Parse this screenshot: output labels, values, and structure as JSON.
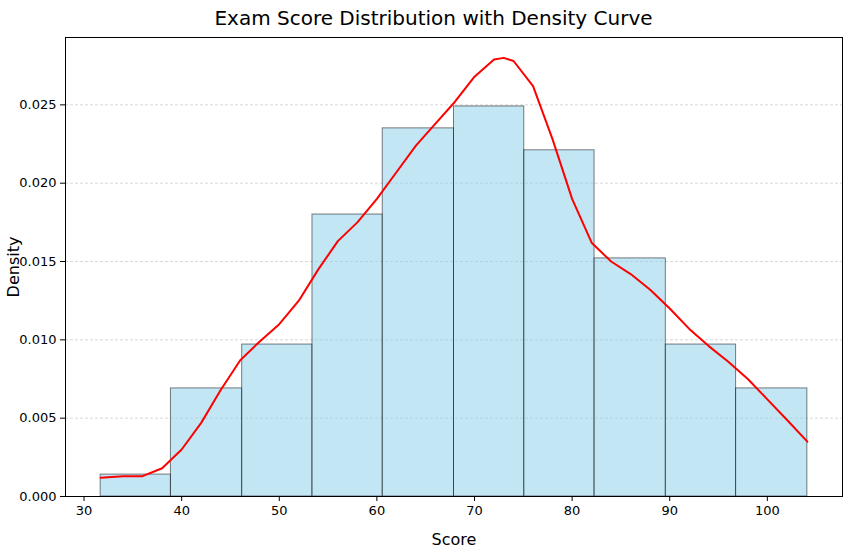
{
  "chart_data": {
    "type": "histogram",
    "title": "Exam Score Distribution with Density Curve",
    "x_label": "Score",
    "y_label": "Density",
    "bins": [
      31.7,
      38.9,
      46.2,
      53.4,
      60.6,
      67.9,
      75.1,
      82.3,
      89.6,
      96.8,
      104.1
    ],
    "values": [
      0.0014,
      0.0069,
      0.0097,
      0.018,
      0.0235,
      0.0249,
      0.0221,
      0.0152,
      0.0097,
      0.0069
    ],
    "color": "#87ceeb",
    "series": [
      {
        "type": "line",
        "color": "#ff0000",
        "x": [
          31.7,
          34,
          36,
          38,
          40,
          42,
          44,
          46,
          48,
          50,
          52,
          54,
          56,
          58,
          60,
          62,
          64,
          66,
          68,
          70,
          72,
          73,
          74,
          76,
          78,
          80,
          82,
          84,
          86,
          88,
          90,
          92,
          94,
          96,
          98,
          100,
          102,
          104.1
        ],
        "values": [
          0.0012,
          0.0013,
          0.0013,
          0.0018,
          0.003,
          0.0047,
          0.0068,
          0.0087,
          0.0099,
          0.011,
          0.0125,
          0.0145,
          0.0163,
          0.0175,
          0.019,
          0.0207,
          0.0224,
          0.0238,
          0.0252,
          0.0268,
          0.0279,
          0.028,
          0.0278,
          0.0262,
          0.0228,
          0.019,
          0.0162,
          0.015,
          0.0142,
          0.0132,
          0.012,
          0.0107,
          0.0096,
          0.0086,
          0.0075,
          0.0062,
          0.0049,
          0.0035
        ]
      }
    ],
    "xlim": [
      28.1,
      107.7
    ],
    "xticks": [
      30,
      40,
      50,
      60,
      70,
      80,
      90,
      100
    ],
    "ylim": [
      0,
      0.0293
    ],
    "yticks": [
      {
        "value": 0,
        "label": "0.000"
      },
      {
        "value": 0.005,
        "label": "0.005"
      },
      {
        "value": 0.01,
        "label": "0.010"
      },
      {
        "value": 0.015,
        "label": "0.015"
      },
      {
        "value": 0.02,
        "label": "0.020"
      },
      {
        "value": 0.025,
        "label": "0.025"
      }
    ],
    "grid": "y"
  }
}
